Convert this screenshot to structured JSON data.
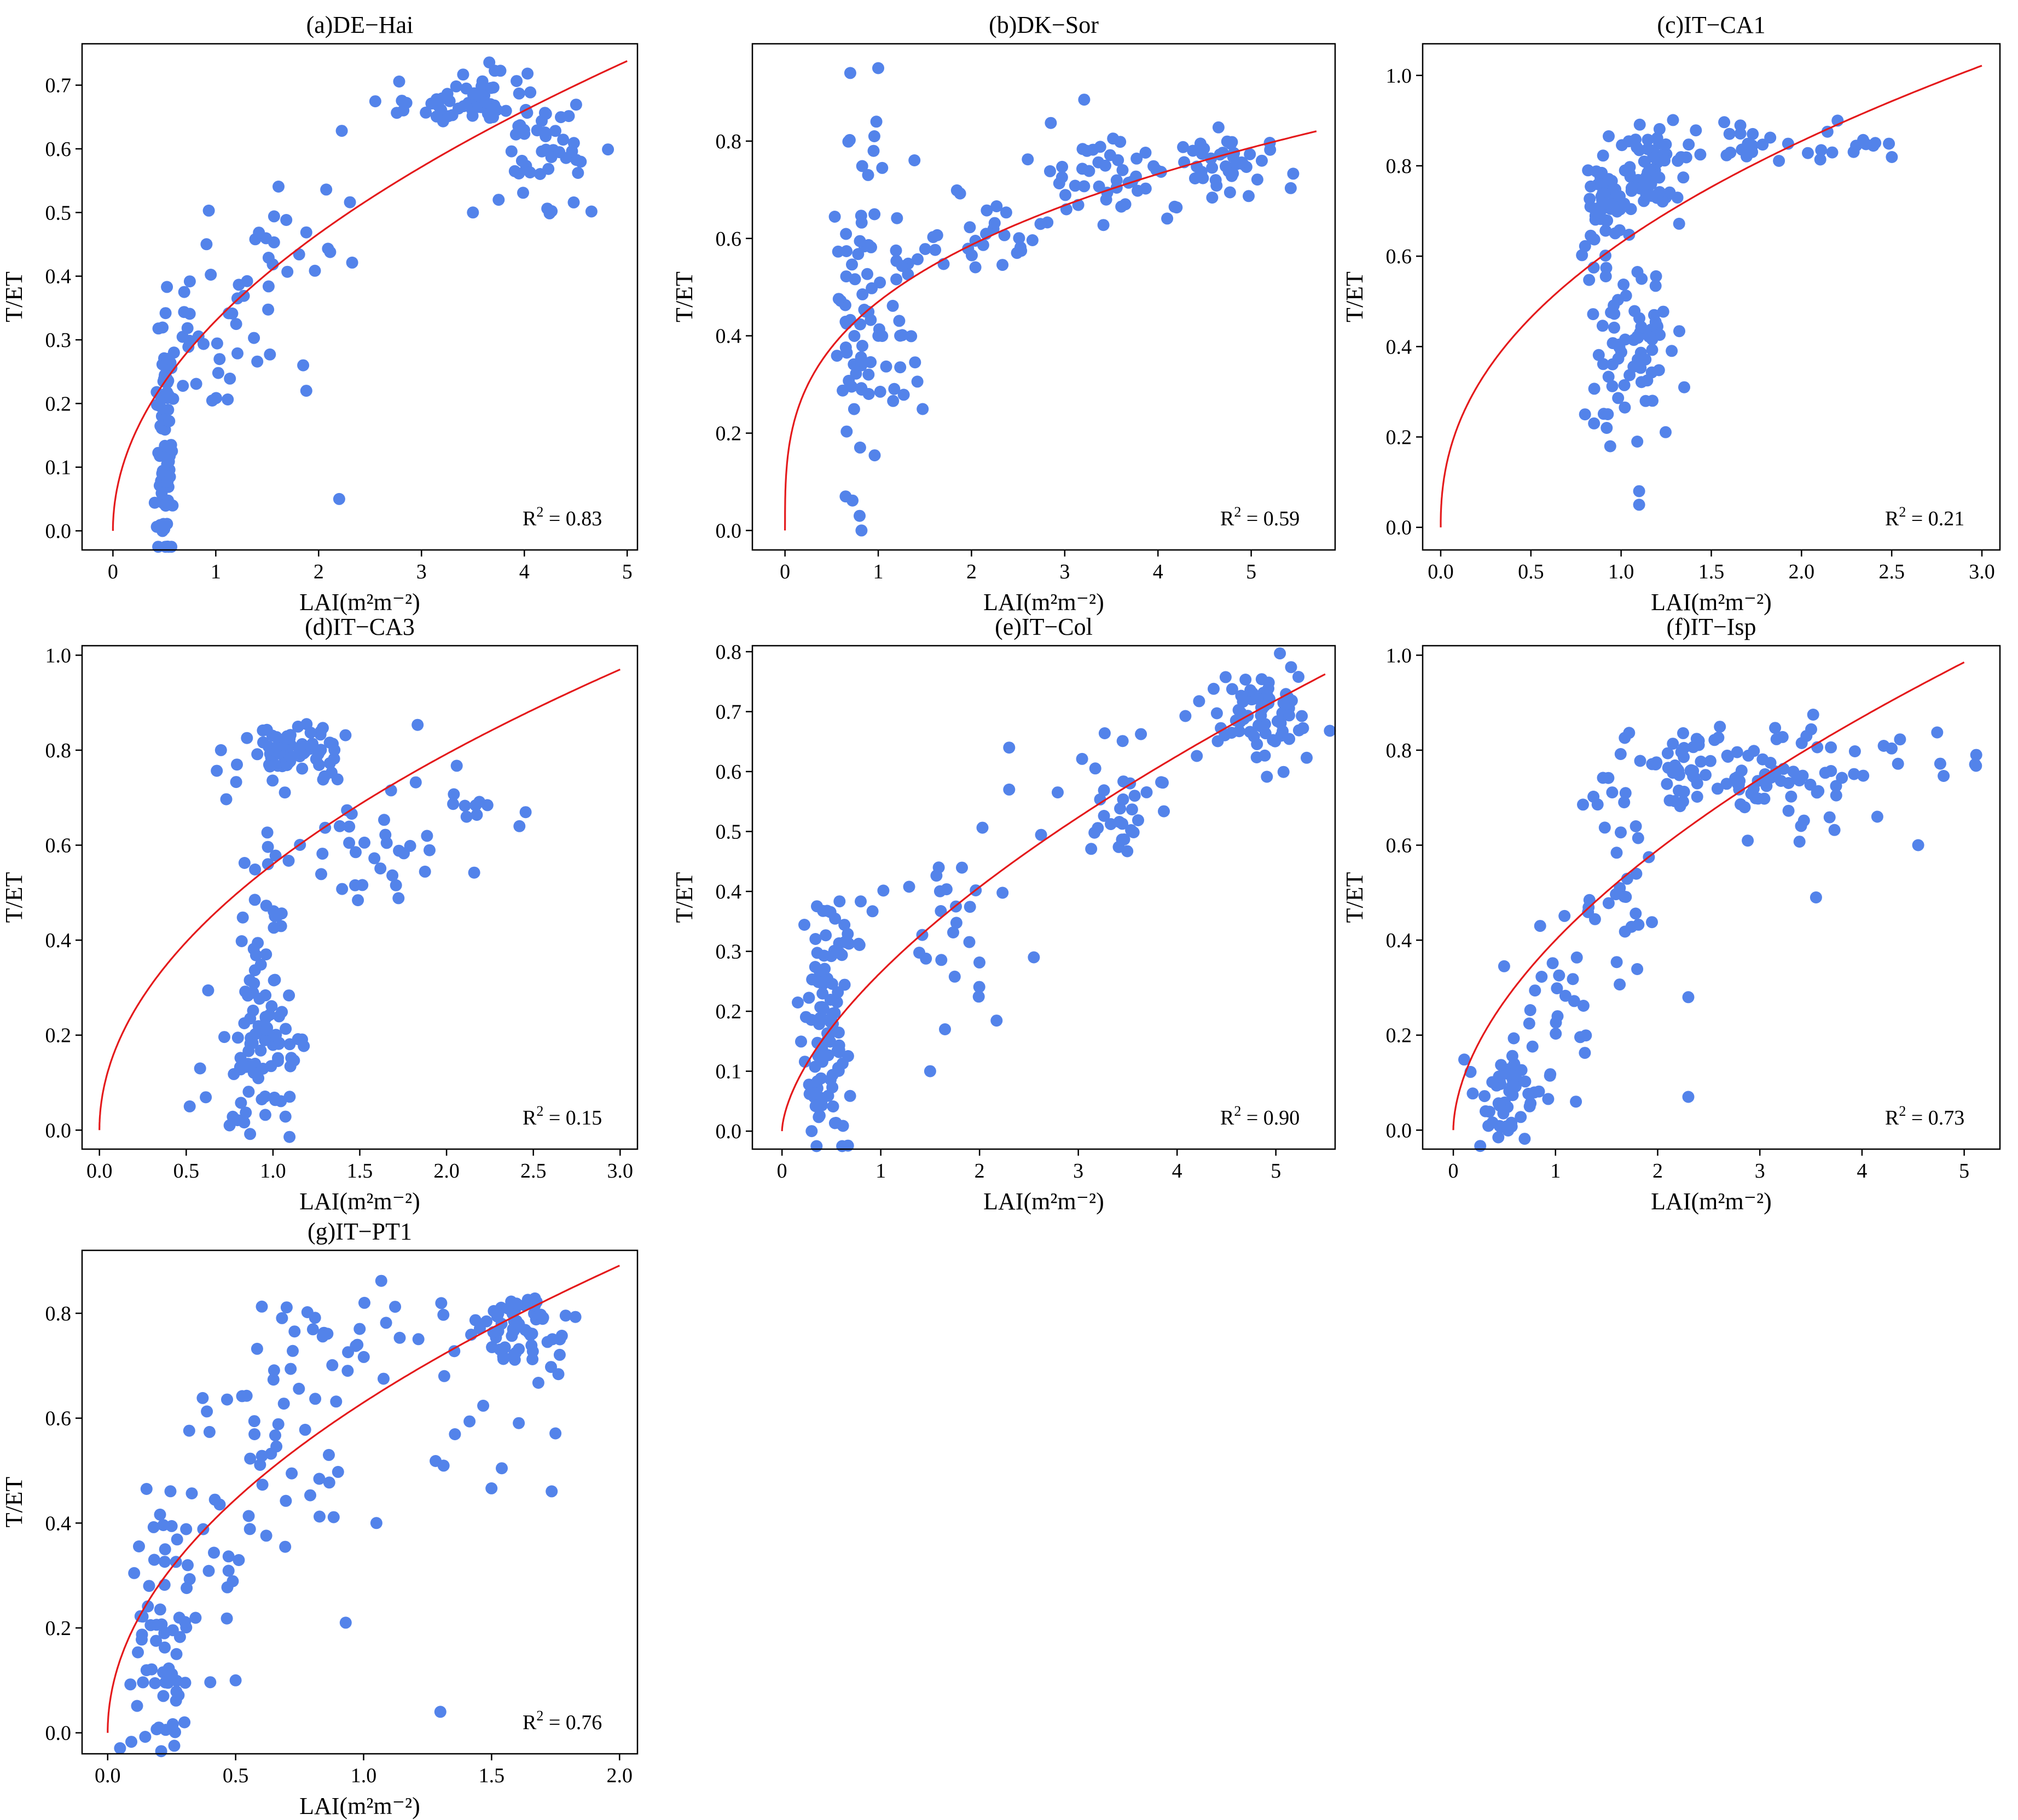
{
  "chart_data": [
    {
      "id": "a",
      "type": "scatter",
      "title": "(a)DE−Hai",
      "xlabel": "LAI(m²m⁻²)",
      "ylabel": "T/ET",
      "xlim": [
        -0.3,
        5.1
      ],
      "ylim": [
        -0.03,
        0.765
      ],
      "xticks": [
        0,
        1,
        2,
        3,
        4,
        5
      ],
      "xtick_labels": [
        "0",
        "1",
        "2",
        "3",
        "4",
        "5"
      ],
      "yticks": [
        0,
        0.1,
        0.2,
        0.3,
        0.4,
        0.5,
        0.6,
        0.7
      ],
      "ytick_labels": [
        "0.0",
        "0.1",
        "0.2",
        "0.3",
        "0.4",
        "0.5",
        "0.6",
        "0.7"
      ],
      "annotation": {
        "label": "R",
        "sup": "2",
        "text": " = 0.83"
      },
      "fit": {
        "a": 0.33,
        "b": 0.5,
        "xmax": 5.0
      },
      "clusters": [
        {
          "xc": 0.5,
          "xs": 0.05,
          "yc": 0.15,
          "ys": 0.09,
          "n": 75
        },
        {
          "xc": 0.9,
          "xs": 0.25,
          "yc": 0.32,
          "ys": 0.07,
          "n": 30
        },
        {
          "xc": 1.7,
          "xs": 0.4,
          "yc": 0.43,
          "ys": 0.07,
          "n": 25
        },
        {
          "xc": 3.4,
          "xs": 0.35,
          "yc": 0.675,
          "ys": 0.025,
          "n": 55
        },
        {
          "xc": 4.25,
          "xs": 0.2,
          "yc": 0.6,
          "ys": 0.04,
          "n": 45
        }
      ],
      "points": [
        [
          2.2,
          0.05
        ],
        [
          1.85,
          0.26
        ],
        [
          1.88,
          0.22
        ],
        [
          3.75,
          0.52
        ],
        [
          3.5,
          0.5
        ]
      ]
    },
    {
      "id": "b",
      "type": "scatter",
      "title": "(b)DK−Sor",
      "xlabel": "LAI(m²m⁻²)",
      "ylabel": "T/ET",
      "xlim": [
        -0.35,
        5.9
      ],
      "ylim": [
        -0.04,
        1.0
      ],
      "xticks": [
        0,
        1,
        2,
        3,
        4,
        5
      ],
      "xtick_labels": [
        "0",
        "1",
        "2",
        "3",
        "4",
        "5"
      ],
      "yticks": [
        0,
        0.2,
        0.4,
        0.6,
        0.8
      ],
      "ytick_labels": [
        "0.0",
        "0.2",
        "0.4",
        "0.6",
        "0.8"
      ],
      "annotation": {
        "label": "R",
        "sup": "2",
        "text": " = 0.59"
      },
      "fit": {
        "a": 0.47,
        "b": 0.32,
        "xmax": 5.7
      },
      "clusters": [
        {
          "xc": 0.8,
          "xs": 0.12,
          "yc": 0.45,
          "ys": 0.15,
          "n": 60
        },
        {
          "xc": 1.2,
          "xs": 0.15,
          "yc": 0.45,
          "ys": 0.12,
          "n": 25
        },
        {
          "xc": 2.3,
          "xs": 0.5,
          "yc": 0.6,
          "ys": 0.05,
          "n": 30
        },
        {
          "xc": 3.5,
          "xs": 0.4,
          "yc": 0.73,
          "ys": 0.05,
          "n": 45
        },
        {
          "xc": 4.8,
          "xs": 0.3,
          "yc": 0.75,
          "ys": 0.04,
          "n": 40
        }
      ],
      "points": [
        [
          0.7,
          0.94
        ],
        [
          1.0,
          0.95
        ],
        [
          0.98,
          0.84
        ],
        [
          0.95,
          0.78
        ],
        [
          0.8,
          0.03
        ],
        [
          0.82,
          0.0
        ],
        [
          0.65,
          0.07
        ]
      ]
    },
    {
      "id": "c",
      "type": "scatter",
      "title": "(c)IT−CA1",
      "xlabel": "LAI(m²m⁻²)",
      "ylabel": "T/ET",
      "xlim": [
        -0.1,
        3.1
      ],
      "ylim": [
        -0.05,
        1.07
      ],
      "xticks": [
        0,
        0.5,
        1.0,
        1.5,
        2.0,
        2.5,
        3.0
      ],
      "xtick_labels": [
        "0.0",
        "0.5",
        "1.0",
        "1.5",
        "2.0",
        "2.5",
        "3.0"
      ],
      "yticks": [
        0,
        0.2,
        0.4,
        0.6,
        0.8,
        1.0
      ],
      "ytick_labels": [
        "0.0",
        "0.2",
        "0.4",
        "0.6",
        "0.8",
        "1.0"
      ],
      "annotation": {
        "label": "R",
        "sup": "2",
        "text": " = 0.21"
      },
      "fit": {
        "a": 0.63,
        "b": 0.44,
        "xmax": 3.0
      },
      "clusters": [
        {
          "xc": 0.9,
          "xs": 0.05,
          "yc": 0.72,
          "ys": 0.05,
          "n": 50
        },
        {
          "xc": 1.15,
          "xs": 0.08,
          "yc": 0.78,
          "ys": 0.05,
          "n": 70
        },
        {
          "xc": 0.98,
          "xs": 0.1,
          "yc": 0.45,
          "ys": 0.12,
          "n": 40
        },
        {
          "xc": 1.15,
          "xs": 0.07,
          "yc": 0.4,
          "ys": 0.1,
          "n": 30
        },
        {
          "xc": 1.75,
          "xs": 0.25,
          "yc": 0.84,
          "ys": 0.02,
          "n": 25
        },
        {
          "xc": 2.35,
          "xs": 0.08,
          "yc": 0.85,
          "ys": 0.015,
          "n": 10
        }
      ],
      "points": [
        [
          1.1,
          0.08
        ],
        [
          1.1,
          0.05
        ],
        [
          0.8,
          0.25
        ],
        [
          0.85,
          0.23
        ],
        [
          0.92,
          0.22
        ],
        [
          1.35,
          0.31
        ],
        [
          2.2,
          0.9
        ]
      ]
    },
    {
      "id": "d",
      "type": "scatter",
      "title": "(d)IT−CA3",
      "xlabel": "LAI(m²m⁻²)",
      "ylabel": "T/ET",
      "xlim": [
        -0.1,
        3.1
      ],
      "ylim": [
        -0.04,
        1.02
      ],
      "xticks": [
        0,
        0.5,
        1.0,
        1.5,
        2.0,
        2.5,
        3.0
      ],
      "xtick_labels": [
        "0.0",
        "0.5",
        "1.0",
        "1.5",
        "2.0",
        "2.5",
        "3.0"
      ],
      "yticks": [
        0,
        0.2,
        0.4,
        0.6,
        0.8,
        1.0
      ],
      "ytick_labels": [
        "0.0",
        "0.2",
        "0.4",
        "0.6",
        "0.8",
        "1.0"
      ],
      "annotation": {
        "label": "R",
        "sup": "2",
        "text": " = 0.15"
      },
      "fit": {
        "a": 0.56,
        "b": 0.5,
        "xmax": 3.0
      },
      "clusters": [
        {
          "xc": 0.95,
          "xs": 0.12,
          "yc": 0.18,
          "ys": 0.09,
          "n": 80
        },
        {
          "xc": 0.95,
          "xs": 0.08,
          "yc": 0.45,
          "ys": 0.1,
          "n": 20
        },
        {
          "xc": 1.1,
          "xs": 0.15,
          "yc": 0.79,
          "ys": 0.03,
          "n": 70
        },
        {
          "xc": 1.6,
          "xs": 0.25,
          "yc": 0.6,
          "ys": 0.1,
          "n": 35
        },
        {
          "xc": 2.15,
          "xs": 0.15,
          "yc": 0.68,
          "ys": 0.03,
          "n": 10
        }
      ],
      "points": [
        [
          0.52,
          0.05
        ],
        [
          0.58,
          0.13
        ],
        [
          0.75,
          0.01
        ],
        [
          2.42,
          0.64
        ],
        [
          0.7,
          0.8
        ]
      ]
    },
    {
      "id": "e",
      "type": "scatter",
      "title": "(e)IT−Col",
      "xlabel": "LAI(m²m⁻²)",
      "ylabel": "T/ET",
      "xlim": [
        -0.3,
        5.6
      ],
      "ylim": [
        -0.03,
        0.81
      ],
      "xticks": [
        0,
        1,
        2,
        3,
        4,
        5
      ],
      "xtick_labels": [
        "0",
        "1",
        "2",
        "3",
        "4",
        "5"
      ],
      "yticks": [
        0,
        0.1,
        0.2,
        0.3,
        0.4,
        0.5,
        0.6,
        0.7,
        0.8
      ],
      "ytick_labels": [
        "0.0",
        "0.1",
        "0.2",
        "0.3",
        "0.4",
        "0.5",
        "0.6",
        "0.7",
        "0.8"
      ],
      "annotation": {
        "label": "R",
        "sup": "2",
        "text": " = 0.90"
      },
      "fit": {
        "a": 0.265,
        "b": 0.62,
        "xmax": 5.5
      },
      "clusters": [
        {
          "xc": 0.45,
          "xs": 0.12,
          "yc": 0.15,
          "ys": 0.1,
          "n": 80
        },
        {
          "xc": 0.55,
          "xs": 0.12,
          "yc": 0.3,
          "ys": 0.06,
          "n": 20
        },
        {
          "xc": 1.6,
          "xs": 0.4,
          "yc": 0.33,
          "ys": 0.08,
          "n": 25
        },
        {
          "xc": 3.3,
          "xs": 0.4,
          "yc": 0.55,
          "ys": 0.05,
          "n": 35
        },
        {
          "xc": 4.85,
          "xs": 0.3,
          "yc": 0.7,
          "ys": 0.04,
          "n": 70
        }
      ],
      "points": [
        [
          2.3,
          0.64
        ],
        [
          2.3,
          0.57
        ],
        [
          2.55,
          0.29
        ],
        [
          1.5,
          0.1
        ],
        [
          1.65,
          0.17
        ],
        [
          0.3,
          0.0
        ]
      ]
    },
    {
      "id": "f",
      "type": "scatter",
      "title": "(f)IT−Isp",
      "xlabel": "LAI(m²m⁻²)",
      "ylabel": "T/ET",
      "xlim": [
        -0.3,
        5.35
      ],
      "ylim": [
        -0.04,
        1.02
      ],
      "xticks": [
        0,
        1,
        2,
        3,
        4,
        5
      ],
      "xtick_labels": [
        "0",
        "1",
        "2",
        "3",
        "4",
        "5"
      ],
      "yticks": [
        0,
        0.2,
        0.4,
        0.6,
        0.8,
        1.0
      ],
      "ytick_labels": [
        "0.0",
        "0.2",
        "0.4",
        "0.6",
        "0.8",
        "1.0"
      ],
      "annotation": {
        "label": "R",
        "sup": "2",
        "text": " = 0.73"
      },
      "fit": {
        "a": 0.4,
        "b": 0.56,
        "xmax": 5.0
      },
      "clusters": [
        {
          "xc": 0.55,
          "xs": 0.15,
          "yc": 0.08,
          "ys": 0.06,
          "n": 50
        },
        {
          "xc": 0.9,
          "xs": 0.25,
          "yc": 0.25,
          "ys": 0.1,
          "n": 25
        },
        {
          "xc": 1.6,
          "xs": 0.25,
          "yc": 0.52,
          "ys": 0.1,
          "n": 30
        },
        {
          "xc": 2.5,
          "xs": 0.4,
          "yc": 0.76,
          "ys": 0.05,
          "n": 70
        },
        {
          "xc": 3.3,
          "xs": 0.35,
          "yc": 0.75,
          "ys": 0.06,
          "n": 40
        },
        {
          "xc": 4.5,
          "xs": 0.4,
          "yc": 0.78,
          "ys": 0.03,
          "n": 12
        }
      ],
      "points": [
        [
          2.3,
          0.07
        ],
        [
          1.2,
          0.06
        ],
        [
          2.3,
          0.28
        ],
        [
          4.55,
          0.6
        ],
        [
          4.15,
          0.66
        ],
        [
          3.55,
          0.49
        ],
        [
          0.85,
          0.43
        ]
      ]
    },
    {
      "id": "g",
      "type": "scatter",
      "title": "(g)IT−PT1",
      "xlabel": "LAI(m²m⁻²)",
      "ylabel": "T/ET",
      "xlim": [
        -0.1,
        2.07
      ],
      "ylim": [
        -0.04,
        0.92
      ],
      "xticks": [
        0,
        0.5,
        1.0,
        1.5,
        2.0
      ],
      "xtick_labels": [
        "0.0",
        "0.5",
        "1.0",
        "1.5",
        "2.0"
      ],
      "yticks": [
        0,
        0.2,
        0.4,
        0.6,
        0.8
      ],
      "ytick_labels": [
        "0.0",
        "0.2",
        "0.4",
        "0.6",
        "0.8"
      ],
      "annotation": {
        "label": "R",
        "sup": "2",
        "text": " = 0.76"
      },
      "fit": {
        "a": 0.63,
        "b": 0.5,
        "xmax": 2.0
      },
      "clusters": [
        {
          "xc": 0.2,
          "xs": 0.06,
          "yc": 0.15,
          "ys": 0.1,
          "n": 50
        },
        {
          "xc": 0.35,
          "xs": 0.1,
          "yc": 0.35,
          "ys": 0.1,
          "n": 30
        },
        {
          "xc": 0.65,
          "xs": 0.15,
          "yc": 0.55,
          "ys": 0.12,
          "n": 40
        },
        {
          "xc": 0.95,
          "xs": 0.15,
          "yc": 0.77,
          "ys": 0.04,
          "n": 25
        },
        {
          "xc": 1.6,
          "xs": 0.12,
          "yc": 0.77,
          "ys": 0.04,
          "n": 60
        },
        {
          "xc": 1.45,
          "xs": 0.15,
          "yc": 0.6,
          "ys": 0.08,
          "n": 15
        }
      ],
      "points": [
        [
          1.3,
          0.04
        ],
        [
          0.93,
          0.21
        ],
        [
          0.5,
          0.1
        ],
        [
          0.3,
          0.02
        ],
        [
          1.05,
          0.4
        ],
        [
          0.2,
          0.01
        ]
      ]
    }
  ]
}
